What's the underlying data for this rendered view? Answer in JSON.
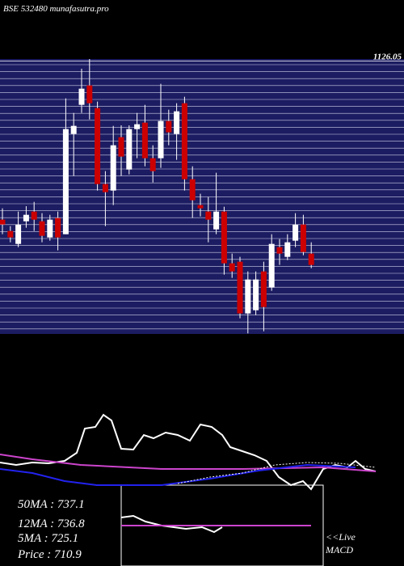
{
  "chart_data": [
    {
      "type": "candlestick",
      "title": "BSE 532480  munafasutra.pro",
      "ylim": [
        620,
        1130
      ],
      "yticks": [
        {
          "value": 1126.05,
          "label": "1126.05"
        }
      ],
      "up_color": "#ffffff",
      "down_color": "#cc0000",
      "open": [
        832,
        811,
        787,
        829,
        847,
        829,
        799,
        835,
        805,
        991,
        1045,
        1081,
        1039,
        898,
        886,
        985,
        925,
        1000,
        1012,
        946,
        946,
        1015,
        991,
        1048,
        907,
        859,
        847,
        814,
        847,
        751,
        754,
        658,
        664,
        736,
        706,
        781,
        763,
        793,
        823,
        769
      ],
      "high": [
        853,
        820,
        847,
        857,
        865,
        844,
        841,
        847,
        1057,
        1030,
        1112,
        1130,
        1051,
        922,
        1006,
        1007,
        1007,
        1030,
        1045,
        970,
        1084,
        1036,
        1048,
        1060,
        931,
        880,
        874,
        919,
        856,
        769,
        763,
        736,
        736,
        754,
        805,
        796,
        805,
        844,
        841,
        790
      ],
      "low": [
        805,
        790,
        781,
        817,
        811,
        790,
        793,
        775,
        805,
        913,
        1030,
        1018,
        886,
        820,
        859,
        913,
        916,
        946,
        931,
        901,
        928,
        970,
        943,
        886,
        835,
        838,
        790,
        805,
        730,
        724,
        649,
        621,
        655,
        625,
        700,
        748,
        757,
        781,
        766,
        742
      ],
      "close": [
        823,
        799,
        823,
        841,
        832,
        802,
        832,
        799,
        1000,
        1006,
        1075,
        1048,
        898,
        883,
        970,
        949,
        1000,
        1009,
        946,
        922,
        1015,
        994,
        1033,
        907,
        868,
        853,
        832,
        847,
        751,
        736,
        658,
        721,
        721,
        670,
        787,
        769,
        790,
        823,
        772,
        748
      ]
    },
    {
      "type": "line",
      "xlim": [
        0,
        500
      ],
      "ylim": [
        0,
        110
      ],
      "series": [
        {
          "color": "#ffffff",
          "x": [
            0,
            20,
            40,
            60,
            80,
            95,
            105,
            118,
            128,
            138,
            150,
            165,
            178,
            190,
            205,
            220,
            235,
            248,
            262,
            275,
            285,
            300,
            315,
            330,
            345,
            360,
            375,
            385,
            400,
            415,
            430,
            440,
            452,
            465
          ],
          "values": [
            38,
            35,
            38,
            37,
            40,
            50,
            80,
            82,
            97,
            90,
            55,
            54,
            72,
            68,
            75,
            72,
            65,
            85,
            82,
            72,
            57,
            52,
            47,
            40,
            20,
            10,
            15,
            5,
            30,
            35,
            32,
            40,
            30,
            27
          ]
        },
        {
          "color": "#cc44cc",
          "x": [
            0,
            40,
            100,
            200,
            300,
            400,
            465
          ],
          "values": [
            48,
            42,
            35,
            30,
            30,
            32,
            27
          ]
        },
        {
          "color": "#2222ee",
          "x": [
            0,
            40,
            80,
            120,
            200,
            260,
            320,
            380,
            440
          ],
          "values": [
            30,
            25,
            15,
            10,
            10,
            18,
            28,
            35,
            32
          ]
        },
        {
          "color": "#ffffff",
          "dashed": true,
          "x": [
            220,
            260,
            300,
            340,
            380,
            420,
            465
          ],
          "values": [
            12,
            20,
            25,
            35,
            38,
            37,
            32
          ]
        }
      ],
      "annotations": [
        "50MA : 737.1",
        "12MA : 736.8",
        "5MA : 725.1",
        "Price  : 710.9",
        "<<Live",
        "MACD"
      ]
    },
    {
      "type": "macd",
      "xlim": [
        150,
        400
      ],
      "ylim": [
        0,
        100
      ],
      "series": [
        {
          "color": "#ffffff",
          "x": [
            150,
            165,
            180,
            200,
            230,
            250,
            265,
            275
          ],
          "values": [
            60,
            62,
            55,
            50,
            46,
            48,
            42,
            48
          ]
        },
        {
          "color": "#cc44cc",
          "x": [
            150,
            385
          ],
          "values": [
            50,
            50
          ]
        }
      ]
    }
  ]
}
